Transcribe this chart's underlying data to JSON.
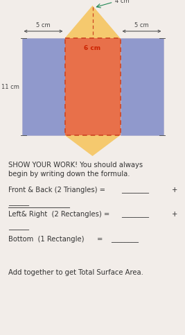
{
  "bg_color": "#f2ede9",
  "triangle_color": "#f5c96e",
  "rect_center_color": "#e8704a",
  "rect_side_color": "#9099cc",
  "label_4cm": "4 cm",
  "label_5cm_left": "5 cm",
  "label_5cm_right": "5 cm",
  "label_6cm": "6 cm",
  "label_11cm": "11 cm",
  "text_show_work_1": "SHOW YOUR WORK! You should always",
  "text_show_work_2": "begin by writing down the formula.",
  "text_line1": "Front & Back (2 Triangles) =",
  "text_plus1": "+",
  "text_line2": "Left& Right  (2 Rectangles) =",
  "text_plus2": "+",
  "text_line3a": "Bottom  (1 Rectangle)",
  "text_line3b": "=",
  "text_footer": "Add together to get Total Surface Area.",
  "underline_long": "________",
  "underline_short": "______"
}
